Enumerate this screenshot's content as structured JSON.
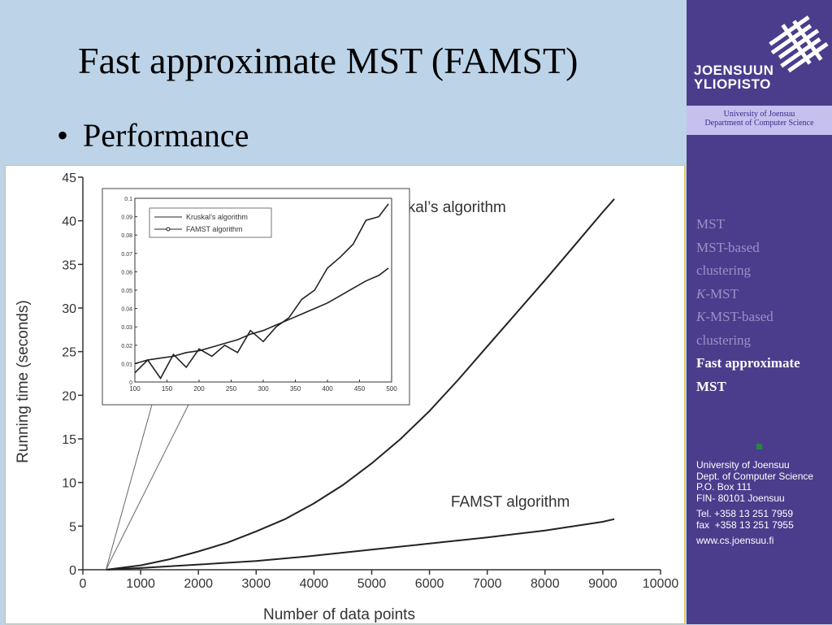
{
  "slide": {
    "title": "Fast approximate MST (FAMST)",
    "bullet": "Performance"
  },
  "sidebar": {
    "logo_line1": "JOENSUUN",
    "logo_line2": "YLIOPISTO",
    "university_line1": "University of Joensuu",
    "university_line2": "Department of Computer Science",
    "nav": [
      {
        "label": "MST",
        "italic_prefix": ""
      },
      {
        "label": "MST-based",
        "italic_prefix": ""
      },
      {
        "label": "clustering",
        "italic_prefix": ""
      },
      {
        "label": "-MST",
        "italic_prefix": "K"
      },
      {
        "label": "-MST-based",
        "italic_prefix": "K"
      },
      {
        "label": "clustering",
        "italic_prefix": ""
      },
      {
        "label": "Fast approximate",
        "italic_prefix": "",
        "active": true
      },
      {
        "label": "MST",
        "italic_prefix": "",
        "active": true
      }
    ],
    "contact": {
      "line1": "University of Joensuu",
      "line2": "Dept. of Computer Science",
      "line3": "P.O. Box 111",
      "line4": "FIN- 80101 Joensuu",
      "tel": "Tel. +358 13 251 7959",
      "fax": "fax  +358 13 251 7955",
      "web": "www.cs.joensuu.fi"
    },
    "colors": {
      "background": "#4b3d8c",
      "band": "#c6c0ee",
      "nav_inactive": "#9a91c8",
      "nav_active": "#ffffff"
    }
  },
  "chart_data": {
    "type": "line",
    "xlabel": "Number of data points",
    "ylabel": "Running time (seconds)",
    "xlim": [
      0,
      10000
    ],
    "ylim": [
      0,
      45
    ],
    "xticks": [
      "0",
      "1000",
      "2000",
      "3000",
      "4000",
      "5000",
      "6000",
      "7000",
      "8000",
      "9000",
      "10000"
    ],
    "yticks": [
      "0",
      "5",
      "10",
      "15",
      "20",
      "25",
      "30",
      "35",
      "40",
      "45"
    ],
    "series": [
      {
        "name": "Kruskal’s algorithm",
        "x": [
          400,
          1000,
          1500,
          2000,
          2500,
          3000,
          3500,
          4000,
          4500,
          5000,
          5500,
          6000,
          6500,
          7000,
          7500,
          8000,
          8500,
          9000,
          9200
        ],
        "y": [
          0,
          0.5,
          1.2,
          2.1,
          3.1,
          4.4,
          5.8,
          7.6,
          9.7,
          12.2,
          15.0,
          18.2,
          21.8,
          25.6,
          29.4,
          33.2,
          37.1,
          41.0,
          42.5
        ]
      },
      {
        "name": "FAMST algorithm",
        "x": [
          400,
          1000,
          2000,
          3000,
          4000,
          5000,
          6000,
          7000,
          8000,
          9000,
          9200
        ],
        "y": [
          0,
          0.2,
          0.6,
          1.0,
          1.6,
          2.3,
          3.0,
          3.7,
          4.5,
          5.5,
          5.8
        ]
      }
    ],
    "series_labels": [
      "Kruskal’s algorithm",
      "FAMST algorithm"
    ],
    "inset": {
      "type": "line",
      "xlim": [
        100,
        500
      ],
      "ylim": [
        0,
        0.1
      ],
      "xticks": [
        "100",
        "150",
        "200",
        "250",
        "300",
        "350",
        "400",
        "450",
        "500"
      ],
      "yticks": [
        "0",
        "0.01",
        "0.02",
        "0.03",
        "0.04",
        "0.05",
        "0.06",
        "0.07",
        "0.08",
        "0.09",
        "0.1"
      ],
      "legend": [
        "Kruskal’s algorithm",
        "FAMST algorithm"
      ],
      "legend_position": "top-left",
      "series": [
        {
          "name": "Kruskal’s algorithm",
          "x": [
            100,
            120,
            140,
            160,
            180,
            200,
            220,
            240,
            260,
            280,
            300,
            320,
            340,
            360,
            380,
            400,
            420,
            440,
            460,
            480,
            495
          ],
          "y": [
            0.005,
            0.012,
            0.002,
            0.015,
            0.008,
            0.018,
            0.014,
            0.02,
            0.016,
            0.028,
            0.022,
            0.03,
            0.035,
            0.045,
            0.05,
            0.062,
            0.068,
            0.075,
            0.088,
            0.09,
            0.097
          ]
        },
        {
          "name": "FAMST algorithm",
          "x": [
            100,
            120,
            140,
            160,
            180,
            200,
            220,
            240,
            260,
            280,
            300,
            320,
            340,
            360,
            380,
            400,
            420,
            440,
            460,
            480,
            495
          ],
          "y": [
            0.01,
            0.012,
            0.013,
            0.014,
            0.016,
            0.017,
            0.019,
            0.021,
            0.023,
            0.026,
            0.028,
            0.031,
            0.034,
            0.037,
            0.04,
            0.043,
            0.047,
            0.051,
            0.055,
            0.058,
            0.062
          ]
        }
      ]
    }
  }
}
